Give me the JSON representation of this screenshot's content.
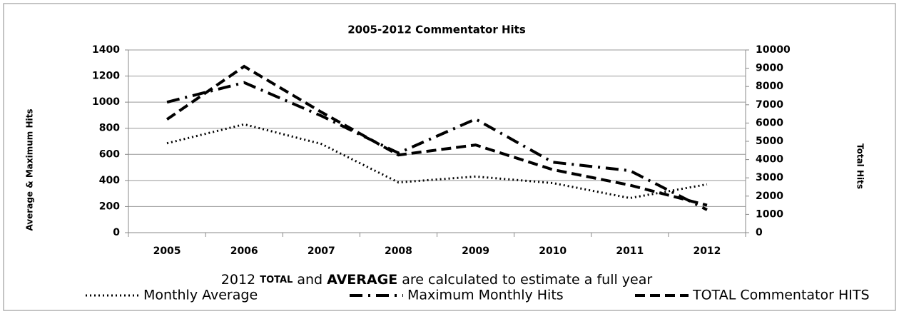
{
  "chart_data": {
    "type": "line",
    "title": "2005-2012 Commentator Hits",
    "y_label": "Average & Maximum Hits",
    "y2_label": "Total Hits",
    "note": [
      "2012",
      "TOTAL",
      "and",
      "AVERAGE",
      "are calculated to estimate a full year"
    ],
    "categories": [
      "2005",
      "2006",
      "2007",
      "2008",
      "2009",
      "2010",
      "2011",
      "2012"
    ],
    "ylim": [
      0,
      1400
    ],
    "yticks": [
      0,
      200,
      400,
      600,
      800,
      1000,
      1200,
      1400
    ],
    "y2lim": [
      0,
      10000
    ],
    "y2ticks": [
      0,
      1000,
      2000,
      3000,
      4000,
      5000,
      6000,
      7000,
      8000,
      9000,
      10000
    ],
    "grid": true,
    "series": [
      {
        "name": "Monthly Average",
        "color": "#000000",
        "style": "dotted",
        "values": [
          685,
          830,
          680,
          385,
          430,
          380,
          265,
          370
        ]
      },
      {
        "name": "Maximum Monthly Hits",
        "color": "#000000",
        "style": "dashdot",
        "values": [
          1000,
          1150,
          895,
          610,
          870,
          540,
          475,
          175
        ]
      },
      {
        "name": "TOTAL Commentator HITS",
        "color": "#000000",
        "style": "dashed",
        "axis": "y2",
        "values": [
          6200,
          9100,
          6600,
          4250,
          4800,
          3450,
          2600,
          1500
        ]
      }
    ]
  }
}
